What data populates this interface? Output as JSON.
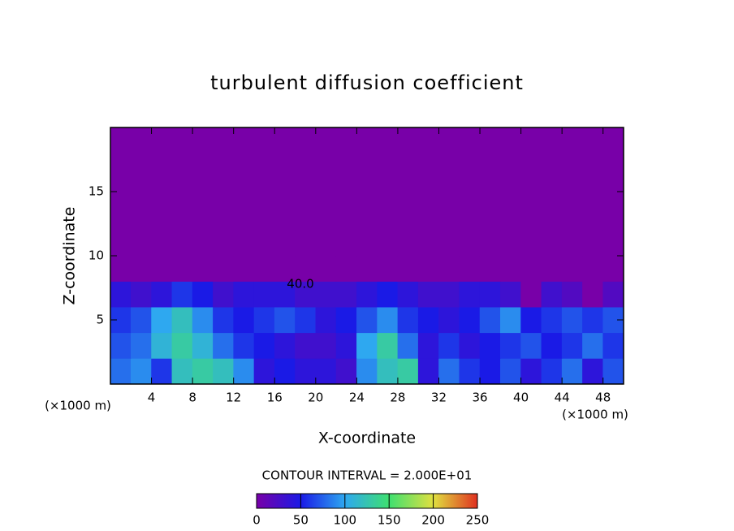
{
  "chart_data": {
    "type": "heatmap",
    "title": "turbulent diffusion coefficient",
    "x_label": "X-coordinate",
    "y_label": "Z-coordinate",
    "x_unit": "(×1000 m)",
    "y_unit": "(×1000 m)",
    "xlim": [
      0,
      50
    ],
    "ylim": [
      0,
      20
    ],
    "xticks": [
      4,
      8,
      12,
      16,
      20,
      24,
      28,
      32,
      36,
      40,
      44,
      48
    ],
    "yticks": [
      5,
      10,
      15
    ],
    "x": [
      1,
      3,
      5,
      7,
      9,
      11,
      13,
      15,
      17,
      19,
      21,
      23,
      25,
      27,
      29,
      31,
      33,
      35,
      37,
      39,
      41,
      43,
      45,
      47,
      49
    ],
    "y": [
      1,
      3,
      5,
      7,
      9,
      11,
      13,
      15,
      17,
      19
    ],
    "z": [
      [
        80,
        90,
        60,
        120,
        130,
        120,
        90,
        40,
        50,
        40,
        40,
        30,
        90,
        120,
        130,
        40,
        80,
        60,
        50,
        70,
        40,
        60,
        80,
        40,
        70
      ],
      [
        70,
        80,
        110,
        130,
        110,
        80,
        60,
        50,
        40,
        30,
        30,
        40,
        100,
        130,
        80,
        40,
        60,
        40,
        50,
        60,
        70,
        50,
        60,
        80,
        60
      ],
      [
        60,
        70,
        100,
        120,
        90,
        60,
        50,
        60,
        70,
        60,
        40,
        50,
        70,
        90,
        60,
        50,
        40,
        50,
        70,
        90,
        50,
        60,
        70,
        60,
        70
      ],
      [
        40,
        30,
        40,
        60,
        50,
        30,
        40,
        40,
        40,
        30,
        30,
        30,
        40,
        50,
        40,
        30,
        30,
        40,
        40,
        30,
        0,
        30,
        20,
        0,
        20
      ],
      [
        0,
        0,
        0,
        0,
        0,
        0,
        0,
        0,
        0,
        0,
        0,
        0,
        0,
        0,
        0,
        0,
        0,
        0,
        0,
        0,
        0,
        0,
        0,
        0,
        0
      ],
      [
        0,
        0,
        0,
        0,
        0,
        0,
        0,
        0,
        0,
        0,
        0,
        0,
        0,
        0,
        0,
        0,
        0,
        0,
        0,
        0,
        0,
        0,
        0,
        0,
        0
      ],
      [
        0,
        0,
        0,
        0,
        0,
        0,
        0,
        0,
        0,
        0,
        0,
        0,
        0,
        0,
        0,
        0,
        0,
        0,
        0,
        0,
        0,
        0,
        0,
        0,
        0
      ],
      [
        0,
        0,
        0,
        0,
        0,
        0,
        0,
        0,
        0,
        0,
        0,
        0,
        0,
        0,
        0,
        0,
        0,
        0,
        0,
        0,
        0,
        0,
        0,
        0,
        0
      ],
      [
        0,
        0,
        0,
        0,
        0,
        0,
        0,
        0,
        0,
        0,
        0,
        0,
        0,
        0,
        0,
        0,
        0,
        0,
        0,
        0,
        0,
        0,
        0,
        0,
        0
      ],
      [
        0,
        0,
        0,
        0,
        0,
        0,
        0,
        0,
        0,
        0,
        0,
        0,
        0,
        0,
        0,
        0,
        0,
        0,
        0,
        0,
        0,
        0,
        0,
        0,
        0
      ]
    ],
    "colormap": [
      "#7800a8",
      "#1a1ae6",
      "#2ea8f0",
      "#3ee070",
      "#e0e040",
      "#e03020"
    ],
    "colorbar": {
      "lim": [
        0,
        250
      ],
      "ticks": [
        0,
        50,
        100,
        150,
        200,
        250
      ],
      "label": "CONTOUR INTERVAL = 2.000E+01"
    },
    "annotations": [
      "40.0"
    ]
  }
}
